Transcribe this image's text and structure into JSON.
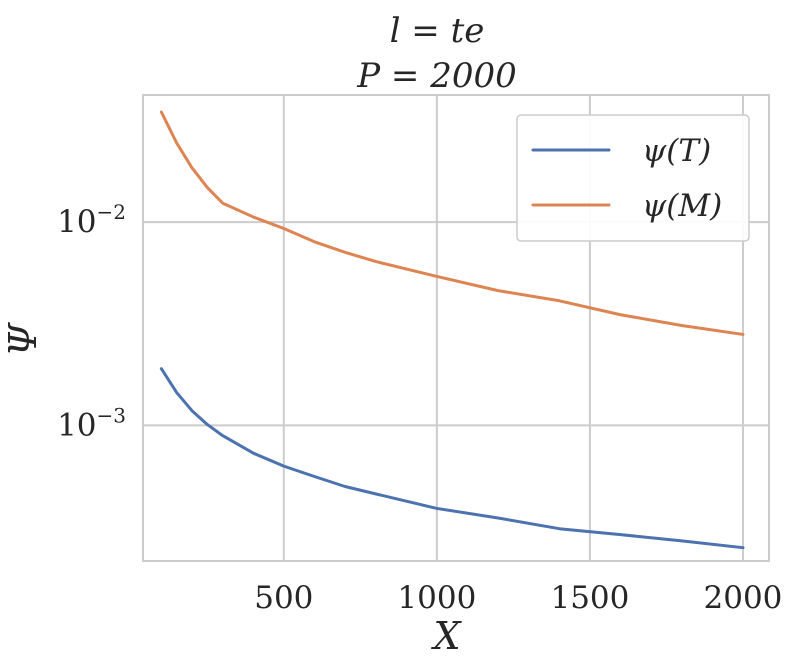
{
  "chart_data": {
    "type": "line",
    "title": [
      "l = te",
      "P = 2000"
    ],
    "xlabel": "X",
    "ylabel": "Ψ",
    "yscale": "log",
    "xlim": [
      40,
      2085
    ],
    "ylim": [
      0.000215,
      0.0422
    ],
    "grid": true,
    "legend_position": "top-right",
    "x_ticks": [
      500,
      1000,
      1500,
      2000
    ],
    "x_tick_labels": [
      "500",
      "1000",
      "1500",
      "2000"
    ],
    "y_ticks": [
      0.01,
      0.001
    ],
    "y_tick_labels": [
      {
        "base": "10",
        "exp": "−2"
      },
      {
        "base": "10",
        "exp": "−3"
      }
    ],
    "x": [
      100,
      150,
      200,
      250,
      300,
      400,
      500,
      600,
      700,
      800,
      1000,
      1200,
      1400,
      1600,
      1800,
      2000
    ],
    "series": [
      {
        "name": "ψ(T)",
        "color": "#4c72b0",
        "values": [
          0.0019,
          0.00145,
          0.00118,
          0.00101,
          0.00089,
          0.00073,
          0.00063,
          0.00056,
          0.0005,
          0.00046,
          0.00039,
          0.00035,
          0.00031,
          0.00029,
          0.00027,
          0.00025
        ]
      },
      {
        "name": "ψ(M)",
        "color": "#dd8452",
        "values": [
          0.0348,
          0.0245,
          0.0185,
          0.0148,
          0.0124,
          0.0106,
          0.0093,
          0.008,
          0.0071,
          0.0064,
          0.0054,
          0.0046,
          0.0041,
          0.0035,
          0.0031,
          0.0028
        ]
      }
    ]
  }
}
